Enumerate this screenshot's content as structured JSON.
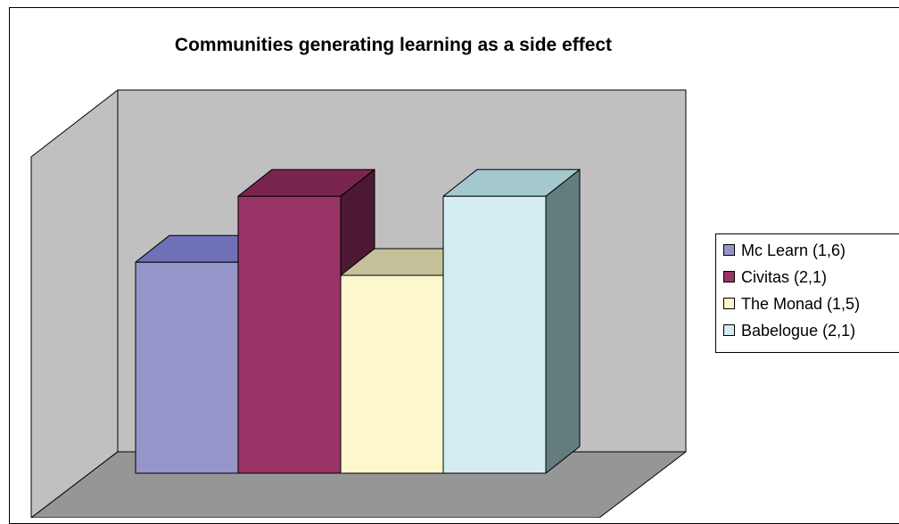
{
  "chart_data": {
    "type": "bar",
    "title": "Communities generating learning as a side effect",
    "xlabel": "",
    "ylabel": "",
    "categories": [
      ""
    ],
    "series": [
      {
        "name": "Mc Learn (1,6)",
        "values": [
          1.6
        ]
      },
      {
        "name": "Civitas (2,1)",
        "values": [
          2.1
        ]
      },
      {
        "name": "The Monad (1,5)",
        "values": [
          1.5
        ]
      },
      {
        "name": "Babelogue (2,1)",
        "values": [
          2.1
        ]
      }
    ],
    "ylim": [
      0,
      2.5
    ],
    "grid": false,
    "three_d": true,
    "legend_position": "right",
    "colors": {
      "series": [
        {
          "front": "#9595c9",
          "top": "#7070b8",
          "side": "#54547f"
        },
        {
          "front": "#993366",
          "top": "#7a2550",
          "side": "#4d1833"
        },
        {
          "front": "#fcf7cd",
          "top": "#c5c29a",
          "side": "#99966f"
        },
        {
          "front": "#d3edf3",
          "top": "#a3c9ce",
          "side": "#637d7f"
        }
      ],
      "back_wall": "#c0c0c0",
      "side_wall": "#c0c0c0",
      "floor": "#969696"
    }
  }
}
